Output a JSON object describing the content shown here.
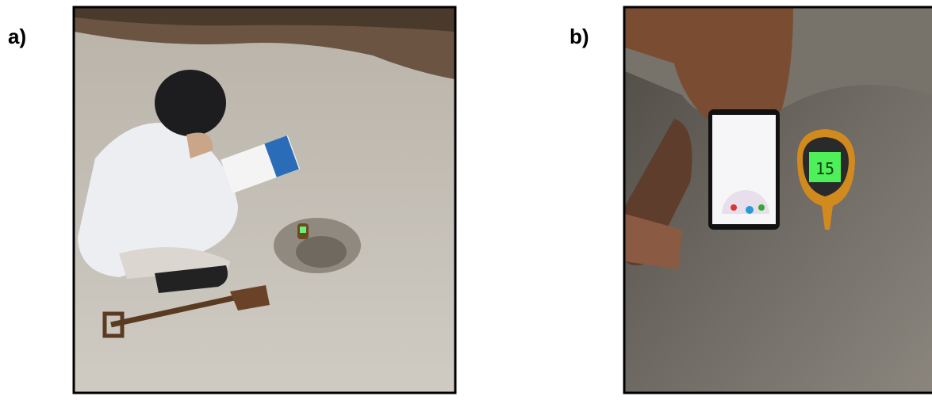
{
  "panels": [
    {
      "label": "a)"
    },
    {
      "label": "b)",
      "meter_reading": "15"
    }
  ]
}
